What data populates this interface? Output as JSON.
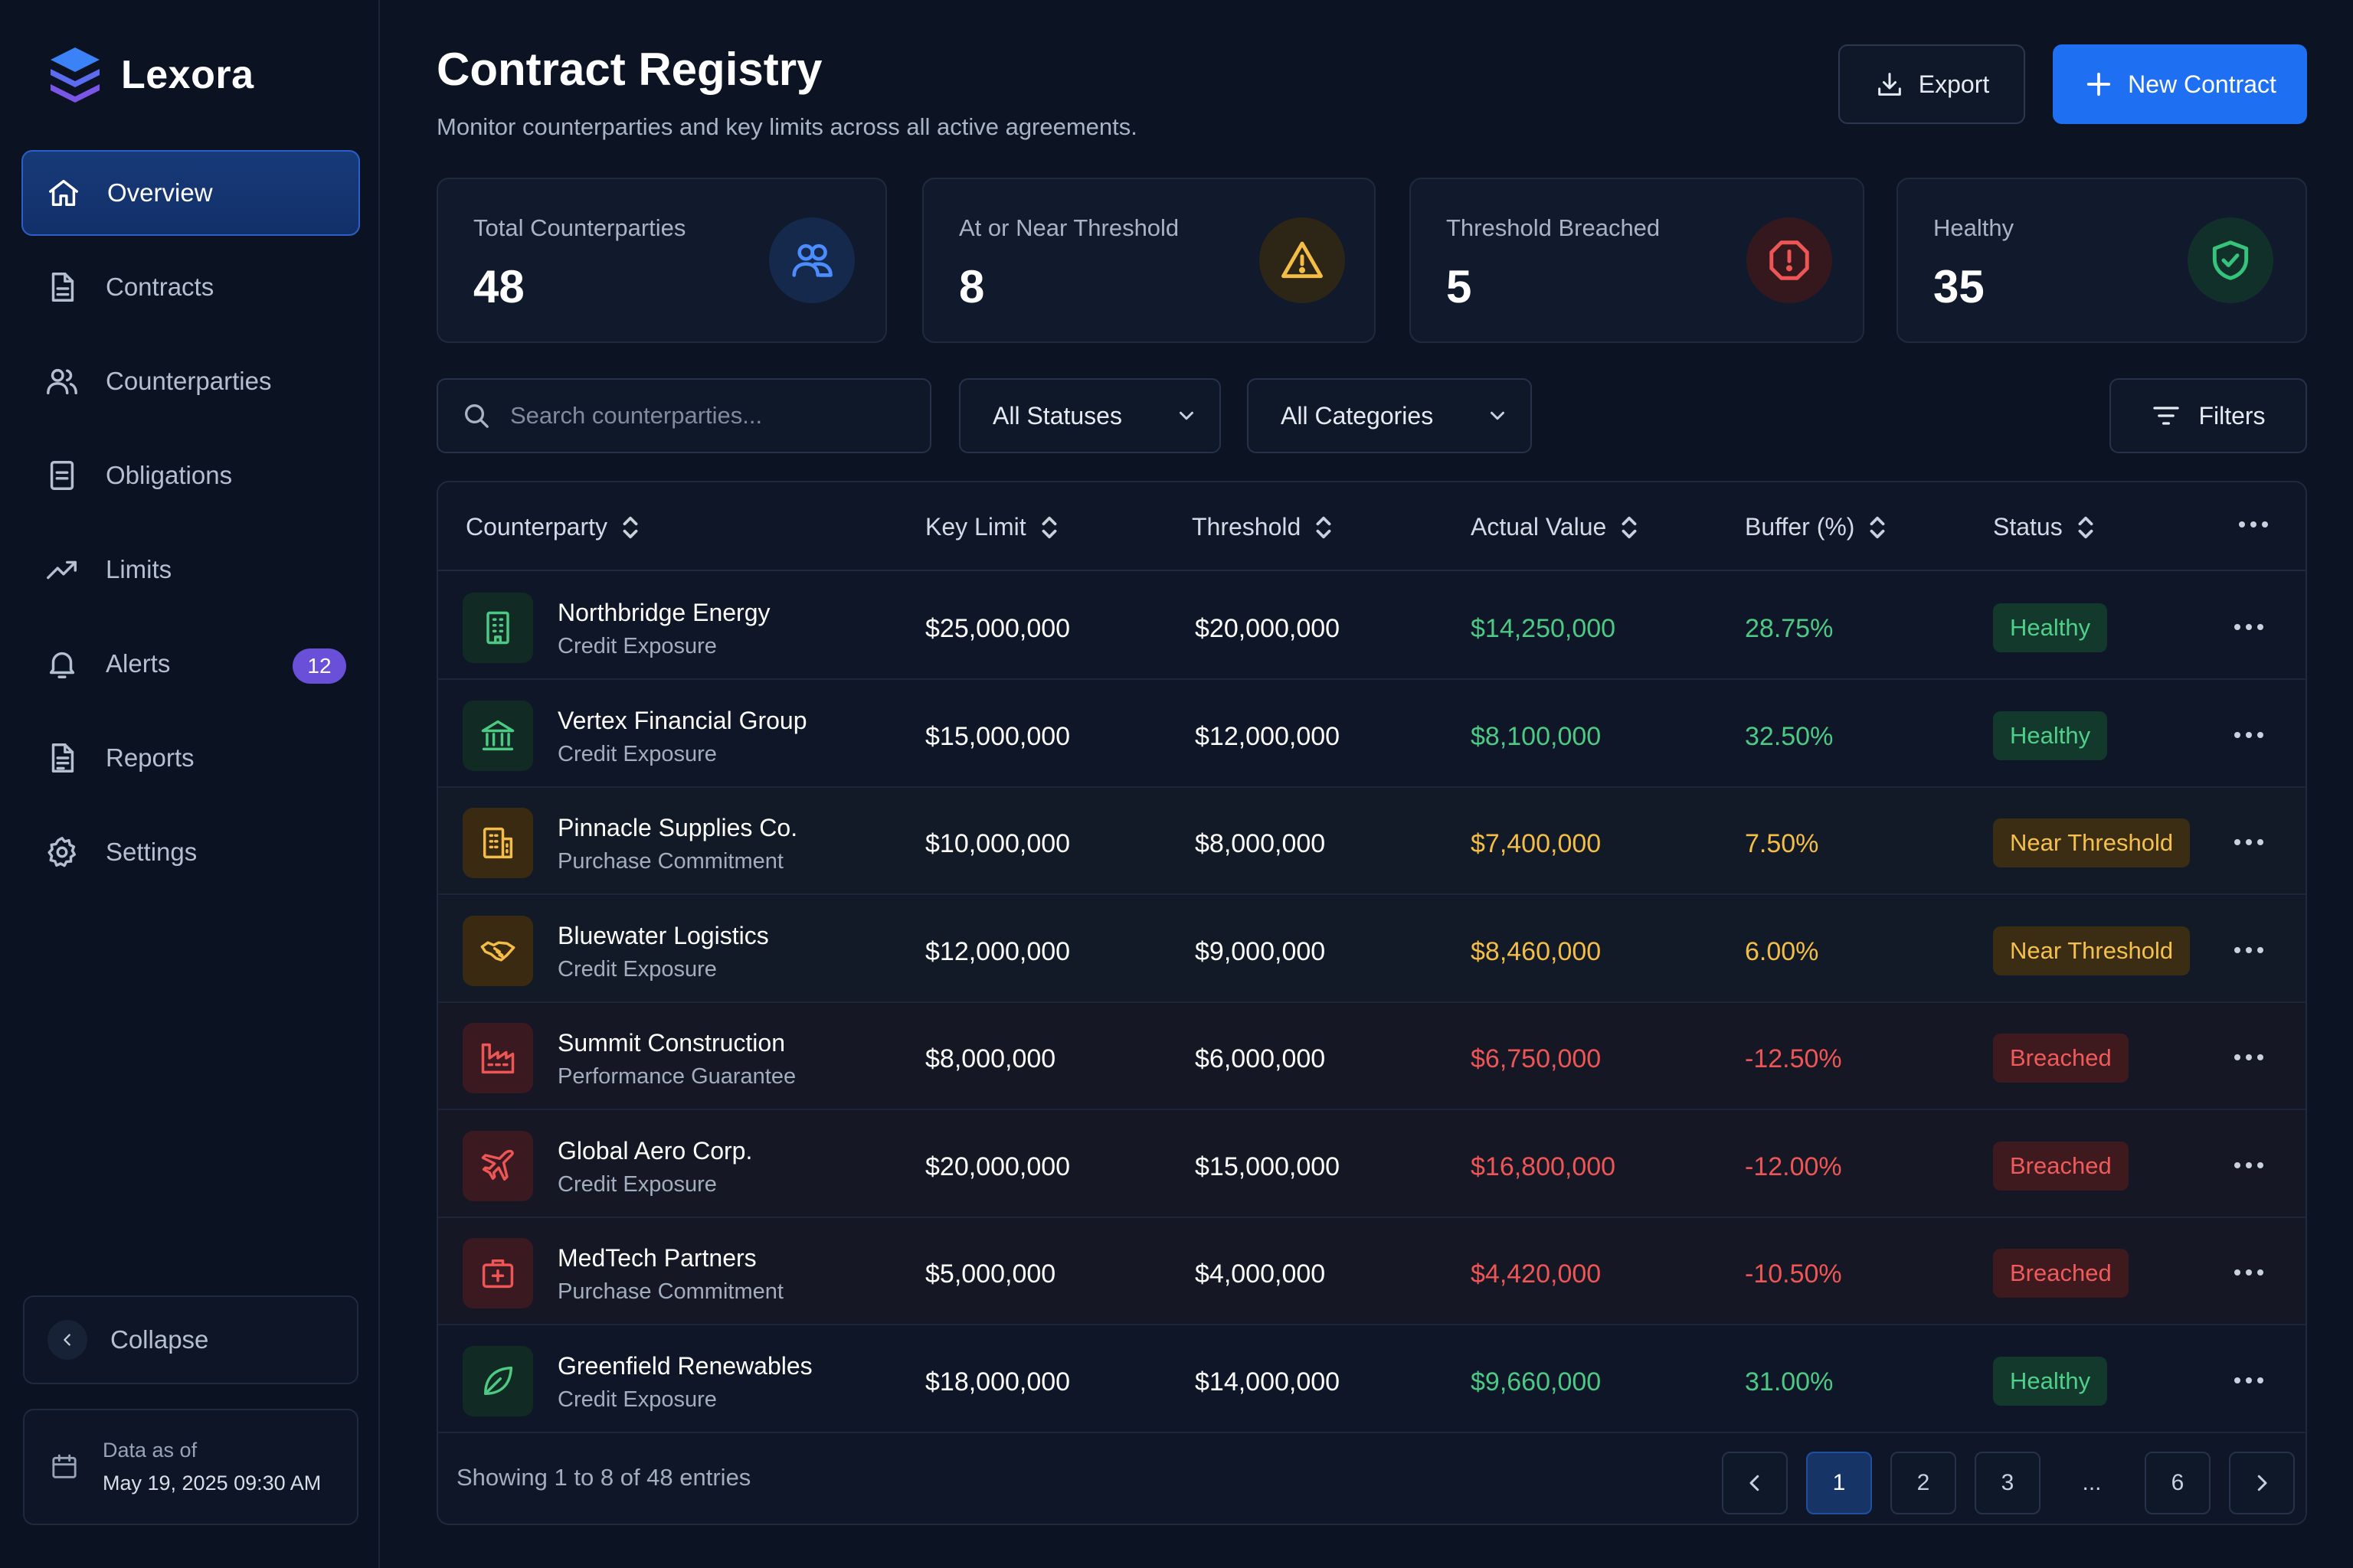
{
  "brand": {
    "name": "Lexora"
  },
  "sidebar": {
    "items": [
      {
        "label": "Overview",
        "icon": "home-icon",
        "active": true
      },
      {
        "label": "Contracts",
        "icon": "document-icon"
      },
      {
        "label": "Counterparties",
        "icon": "users-icon"
      },
      {
        "label": "Obligations",
        "icon": "list-document-icon"
      },
      {
        "label": "Limits",
        "icon": "trend-up-icon"
      },
      {
        "label": "Alerts",
        "icon": "bell-icon",
        "badge": "12"
      },
      {
        "label": "Reports",
        "icon": "report-icon"
      },
      {
        "label": "Settings",
        "icon": "gear-icon"
      }
    ],
    "collapse_label": "Collapse",
    "data_as_of_label": "Data as of",
    "data_as_of_value": "May 19, 2025 09:30 AM"
  },
  "header": {
    "title": "Contract Registry",
    "subtitle": "Monitor counterparties and key limits across all active agreements.",
    "export_label": "Export",
    "new_label": "New Contract"
  },
  "kpis": [
    {
      "label": "Total Counterparties",
      "value": "48",
      "icon": "users-icon",
      "color": "#4b8dff"
    },
    {
      "label": "At or Near Threshold",
      "value": "8",
      "icon": "warning-icon",
      "color": "#f4bd45"
    },
    {
      "label": "Threshold Breached",
      "value": "5",
      "icon": "alert-octagon-icon",
      "color": "#ee5555"
    },
    {
      "label": "Healthy",
      "value": "35",
      "icon": "shield-check-icon",
      "color": "#36c47c"
    }
  ],
  "toolbar": {
    "search_placeholder": "Search counterparties...",
    "status_select": "All Statuses",
    "category_select": "All Categories",
    "filters_label": "Filters"
  },
  "table": {
    "columns": [
      "Counterparty",
      "Key Limit",
      "Threshold",
      "Actual Value",
      "Buffer (%)",
      "Status"
    ],
    "rows": [
      {
        "name": "Northbridge Energy",
        "type": "Credit Exposure",
        "limit": "$25,000,000",
        "threshold": "$20,000,000",
        "actual": "$14,250,000",
        "buffer": "28.75%",
        "status": "Healthy",
        "level": "good",
        "icon": "building-icon"
      },
      {
        "name": "Vertex Financial Group",
        "type": "Credit Exposure",
        "limit": "$15,000,000",
        "threshold": "$12,000,000",
        "actual": "$8,100,000",
        "buffer": "32.50%",
        "status": "Healthy",
        "level": "good",
        "icon": "bank-icon"
      },
      {
        "name": "Pinnacle Supplies Co.",
        "type": "Purchase Commitment",
        "limit": "$10,000,000",
        "threshold": "$8,000,000",
        "actual": "$7,400,000",
        "buffer": "7.50%",
        "status": "Near Threshold",
        "level": "warn",
        "icon": "office-building-icon"
      },
      {
        "name": "Bluewater Logistics",
        "type": "Credit Exposure",
        "limit": "$12,000,000",
        "threshold": "$9,000,000",
        "actual": "$8,460,000",
        "buffer": "6.00%",
        "status": "Near Threshold",
        "level": "warn",
        "icon": "handshake-icon"
      },
      {
        "name": "Summit Construction",
        "type": "Performance Guarantee",
        "limit": "$8,000,000",
        "threshold": "$6,000,000",
        "actual": "$6,750,000",
        "buffer": "-12.50%",
        "status": "Breached",
        "level": "bad",
        "icon": "factory-icon"
      },
      {
        "name": "Global Aero Corp.",
        "type": "Credit Exposure",
        "limit": "$20,000,000",
        "threshold": "$15,000,000",
        "actual": "$16,800,000",
        "buffer": "-12.00%",
        "status": "Breached",
        "level": "bad",
        "icon": "plane-icon"
      },
      {
        "name": "MedTech Partners",
        "type": "Purchase Commitment",
        "limit": "$5,000,000",
        "threshold": "$4,000,000",
        "actual": "$4,420,000",
        "buffer": "-10.50%",
        "status": "Breached",
        "level": "bad",
        "icon": "medical-case-icon"
      },
      {
        "name": "Greenfield Renewables",
        "type": "Credit Exposure",
        "limit": "$18,000,000",
        "threshold": "$14,000,000",
        "actual": "$9,660,000",
        "buffer": "31.00%",
        "status": "Healthy",
        "level": "good",
        "icon": "leaf-icon"
      }
    ]
  },
  "pagination": {
    "summary": "Showing 1 to 8 of 48 entries",
    "pages": [
      "1",
      "2",
      "3",
      "...",
      "6"
    ],
    "current": "1"
  },
  "colors": {
    "accent": "#1f6ff2",
    "healthy": "#4cc983",
    "warning": "#f4bd45",
    "breached": "#ee5555",
    "badge": "#6a4fd8"
  }
}
